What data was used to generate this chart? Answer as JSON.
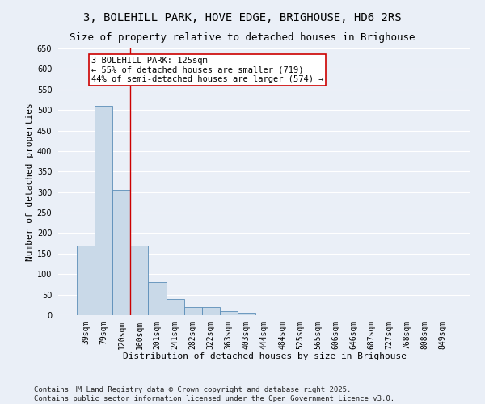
{
  "title_line1": "3, BOLEHILL PARK, HOVE EDGE, BRIGHOUSE, HD6 2RS",
  "title_line2": "Size of property relative to detached houses in Brighouse",
  "xlabel": "Distribution of detached houses by size in Brighouse",
  "ylabel": "Number of detached properties",
  "categories": [
    "39sqm",
    "79sqm",
    "120sqm",
    "160sqm",
    "201sqm",
    "241sqm",
    "282sqm",
    "322sqm",
    "363sqm",
    "403sqm",
    "444sqm",
    "484sqm",
    "525sqm",
    "565sqm",
    "606sqm",
    "646sqm",
    "687sqm",
    "727sqm",
    "768sqm",
    "808sqm",
    "849sqm"
  ],
  "values": [
    170,
    510,
    305,
    170,
    80,
    40,
    20,
    20,
    10,
    5,
    0,
    0,
    0,
    0,
    0,
    0,
    0,
    0,
    0,
    0,
    0
  ],
  "bar_color": "#c9d9e8",
  "bar_edge_color": "#5b8db8",
  "vline_x": 2.5,
  "vline_color": "#cc0000",
  "annotation_text": "3 BOLEHILL PARK: 125sqm\n← 55% of detached houses are smaller (719)\n44% of semi-detached houses are larger (574) →",
  "annotation_box_color": "#ffffff",
  "annotation_box_edge_color": "#cc0000",
  "ylim": [
    0,
    650
  ],
  "yticks": [
    0,
    50,
    100,
    150,
    200,
    250,
    300,
    350,
    400,
    450,
    500,
    550,
    600,
    650
  ],
  "background_color": "#eaeff7",
  "grid_color": "#ffffff",
  "footer_text": "Contains HM Land Registry data © Crown copyright and database right 2025.\nContains public sector information licensed under the Open Government Licence v3.0.",
  "title_fontsize": 10,
  "subtitle_fontsize": 9,
  "annotation_fontsize": 7.5,
  "footer_fontsize": 6.5,
  "axis_label_fontsize": 8,
  "tick_fontsize": 7
}
